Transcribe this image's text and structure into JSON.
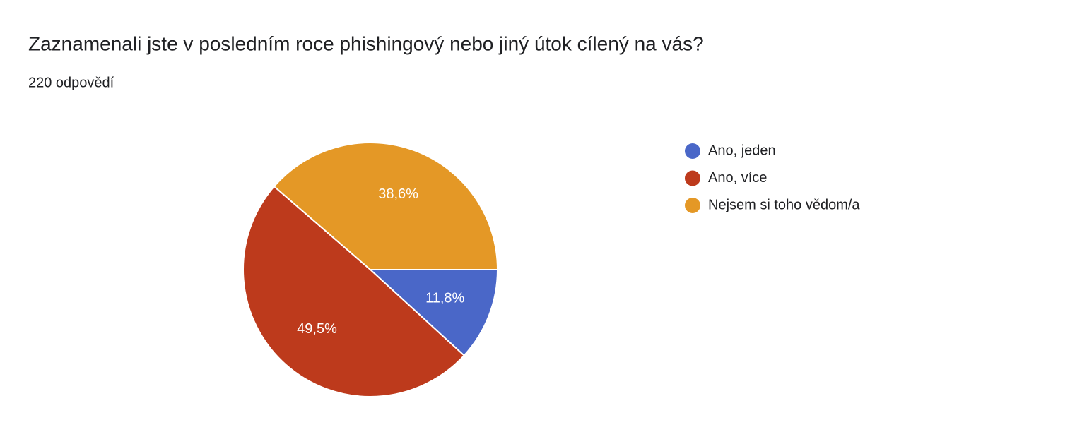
{
  "chart_data": {
    "type": "pie",
    "title": "Zaznamenali jste v posledním roce phishingový nebo jiný útok cílený na vás?",
    "subtitle": "220 odpovědí",
    "categories": [
      "Ano, jeden",
      "Ano, více",
      "Nejsem si toho vědom/a"
    ],
    "values": [
      11.8,
      49.5,
      38.6
    ],
    "value_labels": [
      "11,8%",
      "49,5%",
      "38,6%"
    ],
    "colors": [
      "#4a67c8",
      "#bd3a1c",
      "#e49826"
    ],
    "legend": "right"
  }
}
